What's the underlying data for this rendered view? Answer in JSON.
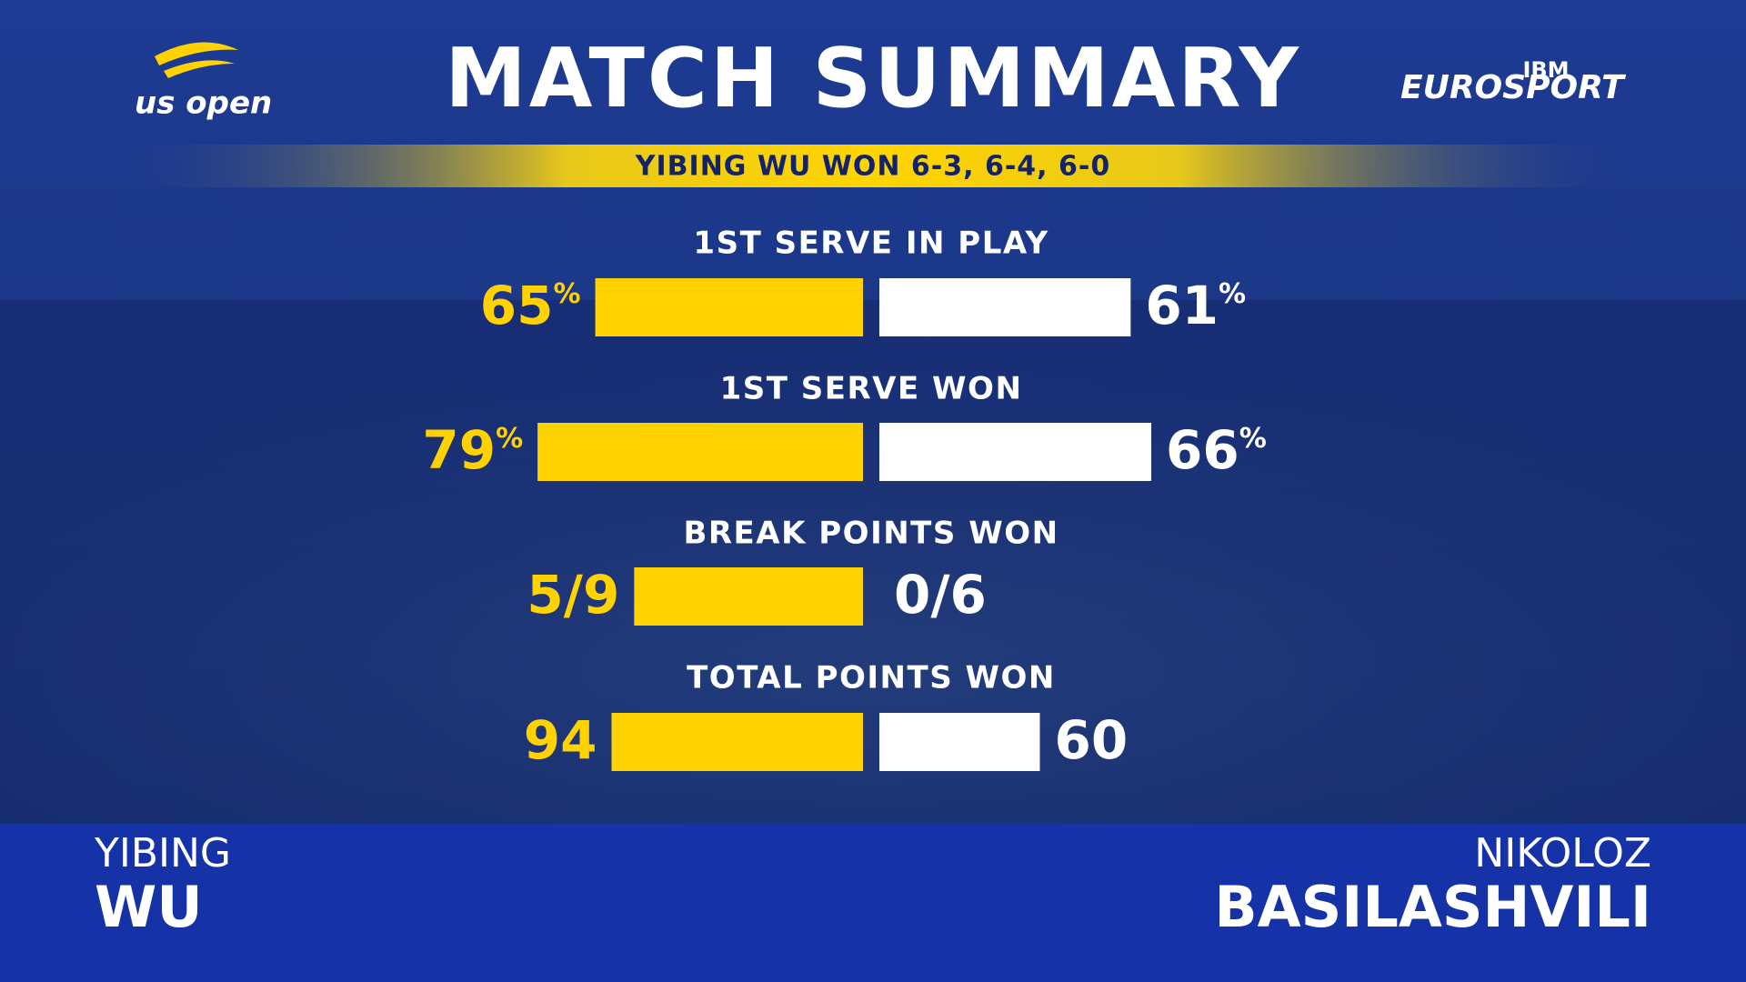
{
  "header": {
    "title": "MATCH SUMMARY",
    "result": "YIBING WU WON 6-3, 6-4, 6-0",
    "logo_left": "us open",
    "logo_right": "EUROSPORT",
    "logo_sponsor": "IBM"
  },
  "stats": [
    {
      "label": "1ST SERVE IN PLAY",
      "unit": "%",
      "left": 65,
      "right": 61
    },
    {
      "label": "1ST SERVE WON",
      "unit": "%",
      "left": 79,
      "right": 66
    },
    {
      "label": "BREAK POINTS WON",
      "left": {
        "label": "5/9",
        "value": 5,
        "of": 9
      },
      "right": {
        "label": "0/6",
        "value": 0,
        "of": 6
      }
    },
    {
      "label": "TOTAL POINTS WON",
      "left": 94,
      "right": 60
    }
  ],
  "players": {
    "left": {
      "first": "YIBING",
      "last": "WU"
    },
    "right": {
      "first": "NIKOLOZ",
      "last": "BASILASHVILI"
    }
  }
}
